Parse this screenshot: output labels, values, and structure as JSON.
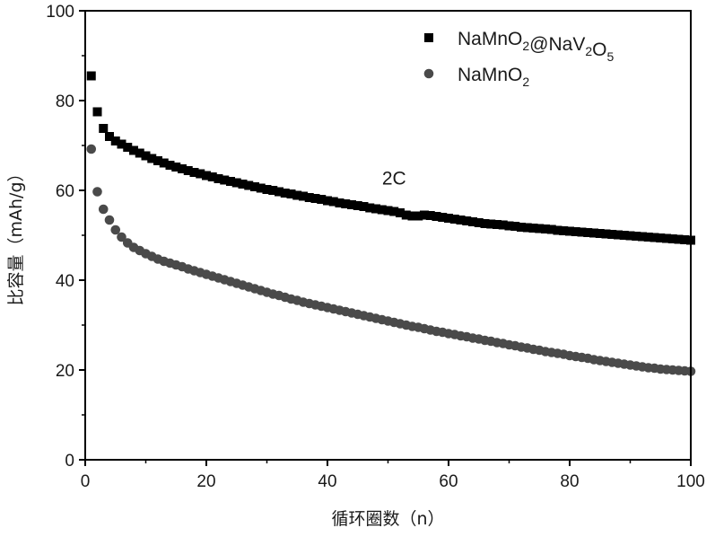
{
  "chart_data": {
    "type": "scatter",
    "xlabel": "循环圈数（n）",
    "ylabel": "比容量（mAh/g）",
    "xlim": [
      0,
      100
    ],
    "ylim": [
      0,
      100
    ],
    "xticks": [
      0,
      20,
      40,
      60,
      80,
      100
    ],
    "yticks": [
      0,
      20,
      40,
      60,
      80,
      100
    ],
    "grid": false,
    "legend_position": "top-right",
    "annotation": "2C",
    "series": [
      {
        "name": "NaMnO2@NaV2O5",
        "name_parts": [
          {
            "t": "NaMnO"
          },
          {
            "t": "2",
            "sub": true
          },
          {
            "t": "@NaV"
          },
          {
            "t": "2",
            "sub": true
          },
          {
            "t": "O"
          },
          {
            "t": "5",
            "sub": true
          }
        ],
        "marker": "square",
        "color": "#000000",
        "x": [
          1,
          2,
          3,
          4,
          5,
          6,
          7,
          8,
          9,
          10,
          11,
          12,
          13,
          14,
          15,
          16,
          17,
          18,
          19,
          20,
          21,
          22,
          23,
          24,
          25,
          26,
          27,
          28,
          29,
          30,
          31,
          32,
          33,
          34,
          35,
          36,
          37,
          38,
          39,
          40,
          41,
          42,
          43,
          44,
          45,
          46,
          47,
          48,
          49,
          50,
          51,
          52,
          53,
          54,
          55,
          56,
          57,
          58,
          59,
          60,
          61,
          62,
          63,
          64,
          65,
          66,
          67,
          68,
          69,
          70,
          71,
          72,
          73,
          74,
          75,
          76,
          77,
          78,
          79,
          80,
          81,
          82,
          83,
          84,
          85,
          86,
          87,
          88,
          89,
          90,
          91,
          92,
          93,
          94,
          95,
          96,
          97,
          98,
          99,
          100
        ],
        "y": [
          85.5,
          77.5,
          73.8,
          72.0,
          71.0,
          70.3,
          69.6,
          68.9,
          68.3,
          67.7,
          67.1,
          66.6,
          66.1,
          65.6,
          65.2,
          64.8,
          64.4,
          64.0,
          63.7,
          63.3,
          63.0,
          62.6,
          62.3,
          62.0,
          61.7,
          61.4,
          61.1,
          60.8,
          60.5,
          60.2,
          60.0,
          59.7,
          59.4,
          59.2,
          58.9,
          58.7,
          58.4,
          58.2,
          58.0,
          57.7,
          57.5,
          57.2,
          57.0,
          56.8,
          56.6,
          56.4,
          56.1,
          55.9,
          55.7,
          55.5,
          55.3,
          55.0,
          54.5,
          54.3,
          54.3,
          54.5,
          54.4,
          54.2,
          54.0,
          53.8,
          53.6,
          53.4,
          53.2,
          53.0,
          52.8,
          52.6,
          52.5,
          52.4,
          52.3,
          52.1,
          52.0,
          51.8,
          51.7,
          51.6,
          51.5,
          51.4,
          51.3,
          51.1,
          51.0,
          50.9,
          50.8,
          50.7,
          50.6,
          50.5,
          50.4,
          50.3,
          50.2,
          50.1,
          50.0,
          49.9,
          49.8,
          49.7,
          49.6,
          49.5,
          49.4,
          49.3,
          49.2,
          49.1,
          49.0,
          48.9
        ]
      },
      {
        "name": "NaMnO2",
        "name_parts": [
          {
            "t": "NaMnO"
          },
          {
            "t": "2",
            "sub": true
          }
        ],
        "marker": "circle",
        "color": "#4a4a4a",
        "x": [
          1,
          2,
          3,
          4,
          5,
          6,
          7,
          8,
          9,
          10,
          11,
          12,
          13,
          14,
          15,
          16,
          17,
          18,
          19,
          20,
          21,
          22,
          23,
          24,
          25,
          26,
          27,
          28,
          29,
          30,
          31,
          32,
          33,
          34,
          35,
          36,
          37,
          38,
          39,
          40,
          41,
          42,
          43,
          44,
          45,
          46,
          47,
          48,
          49,
          50,
          51,
          52,
          53,
          54,
          55,
          56,
          57,
          58,
          59,
          60,
          61,
          62,
          63,
          64,
          65,
          66,
          67,
          68,
          69,
          70,
          71,
          72,
          73,
          74,
          75,
          76,
          77,
          78,
          79,
          80,
          81,
          82,
          83,
          84,
          85,
          86,
          87,
          88,
          89,
          90,
          91,
          92,
          93,
          94,
          95,
          96,
          97,
          98,
          99,
          100
        ],
        "y": [
          69.2,
          59.7,
          55.8,
          53.4,
          51.2,
          49.6,
          48.3,
          47.3,
          46.6,
          45.9,
          45.3,
          44.7,
          44.2,
          43.8,
          43.4,
          43.0,
          42.5,
          42.1,
          41.7,
          41.3,
          40.9,
          40.5,
          40.1,
          39.7,
          39.3,
          38.9,
          38.5,
          38.1,
          37.7,
          37.3,
          36.9,
          36.6,
          36.2,
          35.8,
          35.5,
          35.1,
          34.8,
          34.5,
          34.2,
          33.9,
          33.6,
          33.3,
          33.0,
          32.7,
          32.4,
          32.1,
          31.8,
          31.5,
          31.2,
          30.9,
          30.6,
          30.3,
          30.0,
          29.7,
          29.5,
          29.2,
          28.9,
          28.6,
          28.4,
          28.1,
          27.9,
          27.6,
          27.4,
          27.1,
          26.9,
          26.6,
          26.4,
          26.1,
          25.9,
          25.6,
          25.4,
          25.1,
          24.9,
          24.6,
          24.4,
          24.1,
          23.9,
          23.7,
          23.5,
          23.2,
          23.0,
          22.8,
          22.6,
          22.3,
          22.1,
          21.9,
          21.7,
          21.5,
          21.3,
          21.1,
          20.9,
          20.7,
          20.5,
          20.4,
          20.2,
          20.1,
          20.0,
          19.9,
          19.8,
          19.7
        ]
      }
    ]
  }
}
